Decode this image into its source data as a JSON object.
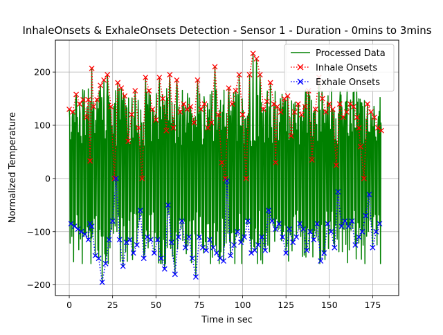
{
  "chart_data": {
    "type": "line",
    "title": "InhaleOnsets & ExhaleOnsets Detection - Sensor 1 - Duration - 0mins to 3mins",
    "xlabel": "Time in sec",
    "ylabel": "Normalized Temperature",
    "xlim": [
      -8,
      190
    ],
    "ylim": [
      -220,
      260
    ],
    "xticks": [
      0,
      25,
      50,
      75,
      100,
      125,
      150,
      175
    ],
    "yticks": [
      -200,
      -100,
      0,
      100,
      200
    ],
    "grid": true,
    "legend_position": "upper right",
    "series": [
      {
        "name": "Processed Data",
        "style": "solid line",
        "color": "#008000",
        "description_points": [
          [
            0,
            135
          ],
          [
            0.4,
            -130
          ],
          [
            1,
            120
          ],
          [
            2,
            -90
          ],
          [
            3,
            140
          ],
          [
            4,
            -100
          ],
          [
            5,
            150
          ],
          [
            6,
            -110
          ],
          [
            7,
            130
          ],
          [
            8,
            -120
          ]
        ]
      },
      {
        "name": "Inhale Onsets",
        "style": "dotted line with x markers",
        "color": "#ff0000",
        "x": [
          0,
          2,
          4,
          6,
          8,
          10,
          11,
          12,
          13,
          14,
          16,
          18,
          20,
          22,
          24,
          26,
          28,
          30,
          32,
          34,
          36,
          38,
          40,
          42,
          44,
          46,
          48,
          50,
          52,
          54,
          56,
          58,
          60,
          62,
          64,
          66,
          68,
          70,
          72,
          74,
          76,
          78,
          80,
          82,
          84,
          86,
          88,
          90,
          92,
          94,
          96,
          98,
          100,
          102,
          104,
          106,
          108,
          110,
          112,
          114,
          116,
          118,
          119,
          120,
          122,
          124,
          126,
          128,
          130,
          132,
          134,
          136,
          138,
          140,
          142,
          144,
          146,
          148,
          150,
          152,
          154,
          156,
          158,
          160,
          162,
          164,
          166,
          167,
          168,
          170,
          172,
          174,
          176,
          178,
          180
        ],
        "y": [
          130,
          125,
          158,
          140,
          148,
          115,
          148,
          33,
          207,
          135,
          148,
          175,
          185,
          195,
          135,
          0,
          180,
          170,
          155,
          70,
          120,
          165,
          95,
          0,
          190,
          165,
          130,
          110,
          190,
          150,
          90,
          195,
          95,
          185,
          125,
          140,
          130,
          135,
          105,
          185,
          130,
          140,
          95,
          105,
          210,
          120,
          30,
          0,
          170,
          140,
          165,
          195,
          120,
          0,
          195,
          235,
          225,
          195,
          130,
          145,
          180,
          140,
          30,
          135,
          125,
          150,
          155,
          80,
          125,
          140,
          120,
          135,
          165,
          35,
          130,
          190,
          150,
          125,
          140,
          130,
          25,
          140,
          115,
          125,
          140,
          135,
          115,
          95,
          60,
          0,
          140,
          125,
          115,
          95,
          90
        ]
      },
      {
        "name": "Exhale Onsets",
        "style": "dotted line with x markers",
        "color": "#0000ff",
        "x": [
          1,
          3,
          5,
          7,
          9,
          11,
          12,
          13,
          15,
          17,
          19,
          21,
          23,
          25,
          27,
          29,
          31,
          33,
          35,
          37,
          39,
          41,
          43,
          45,
          47,
          49,
          51,
          53,
          55,
          57,
          59,
          61,
          63,
          65,
          67,
          69,
          71,
          73,
          75,
          77,
          79,
          81,
          83,
          85,
          87,
          89,
          91,
          93,
          95,
          97,
          99,
          101,
          103,
          105,
          107,
          109,
          111,
          113,
          115,
          117,
          119,
          121,
          123,
          125,
          127,
          129,
          131,
          133,
          135,
          137,
          139,
          141,
          143,
          145,
          147,
          149,
          151,
          153,
          155,
          157,
          159,
          161,
          163,
          165,
          167,
          169,
          171,
          173,
          175,
          177,
          179
        ],
        "y": [
          -85,
          -90,
          -95,
          -100,
          -105,
          -115,
          -85,
          -90,
          -145,
          -150,
          -195,
          -160,
          -115,
          -80,
          0,
          -115,
          -165,
          -120,
          -115,
          -140,
          -125,
          -60,
          -150,
          -110,
          -115,
          -140,
          -115,
          -150,
          -170,
          -50,
          -120,
          -180,
          -110,
          -80,
          -130,
          -110,
          -150,
          -185,
          -110,
          -130,
          -135,
          -115,
          -130,
          -140,
          -150,
          -155,
          -5,
          -145,
          -125,
          -100,
          -120,
          -110,
          -80,
          -140,
          -135,
          -125,
          -110,
          -135,
          -60,
          -80,
          -95,
          -85,
          -110,
          -140,
          -95,
          -120,
          -110,
          -85,
          -95,
          -135,
          -100,
          -115,
          -85,
          -155,
          -140,
          -85,
          -100,
          -130,
          -25,
          -90,
          -80,
          -90,
          -80,
          -125,
          -110,
          -100,
          -70,
          -30,
          -130,
          -100,
          -85
        ]
      }
    ]
  }
}
